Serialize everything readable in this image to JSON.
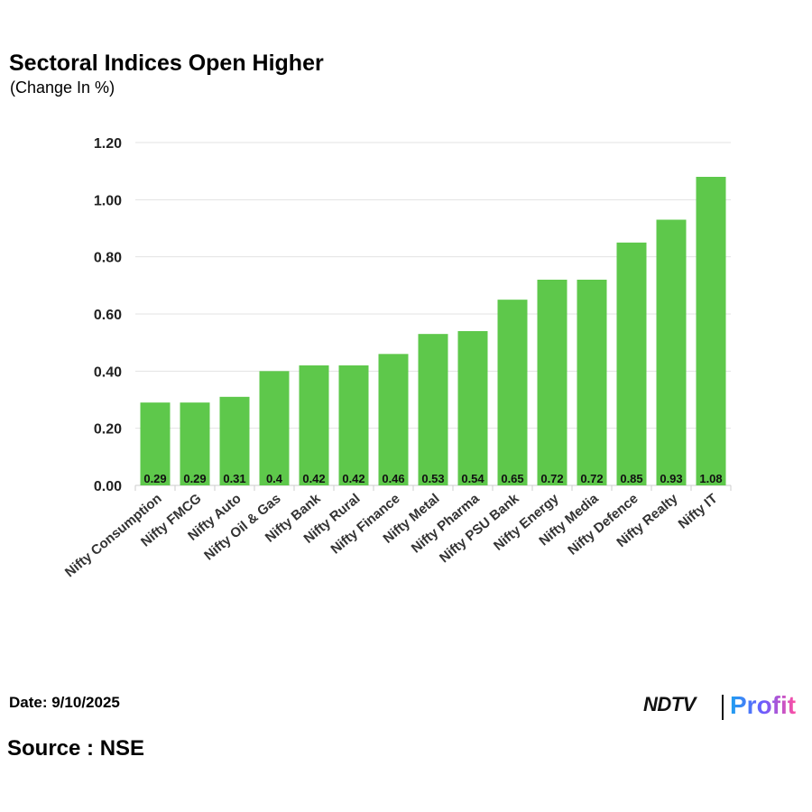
{
  "header": {
    "title": "Sectoral Indices Open Higher",
    "subtitle": "(Change In %)"
  },
  "footer": {
    "date": "Date: 9/10/2025",
    "source": "Source : NSE",
    "logo_left": "NDTV",
    "logo_right": "Profit"
  },
  "colors": {
    "bar": "#5ec84b",
    "grid": "#e3e3e3",
    "axis": "#cccccc"
  },
  "chart_data": {
    "type": "bar",
    "title": "Sectoral Indices Open Higher",
    "subtitle": "(Change In %)",
    "xlabel": "",
    "ylabel": "",
    "categories": [
      "Nifty Consumption",
      "Nifty FMCG",
      "Nifty Auto",
      "Nifty Oil & Gas",
      "Nifty Bank",
      "Nifty Rural",
      "Nifty Finance",
      "Nifty Metal",
      "Nifty Pharma",
      "Nifty PSU Bank",
      "Nifty Energy",
      "Nifty Media",
      "Nifty Defence",
      "Nifty Realty",
      "Nifty IT"
    ],
    "values": [
      0.29,
      0.29,
      0.31,
      0.4,
      0.42,
      0.42,
      0.46,
      0.53,
      0.54,
      0.65,
      0.72,
      0.72,
      0.85,
      0.93,
      1.08
    ],
    "data_labels": [
      "0.29",
      "0.29",
      "0.31",
      "0.4",
      "0.42",
      "0.42",
      "0.46",
      "0.53",
      "0.54",
      "0.65",
      "0.72",
      "0.72",
      "0.85",
      "0.93",
      "1.08"
    ],
    "ylim": [
      0,
      1.2
    ],
    "yticks": [
      "0.00",
      "0.20",
      "0.40",
      "0.60",
      "0.80",
      "1.00",
      "1.20"
    ],
    "grid": true,
    "legend": "none"
  }
}
